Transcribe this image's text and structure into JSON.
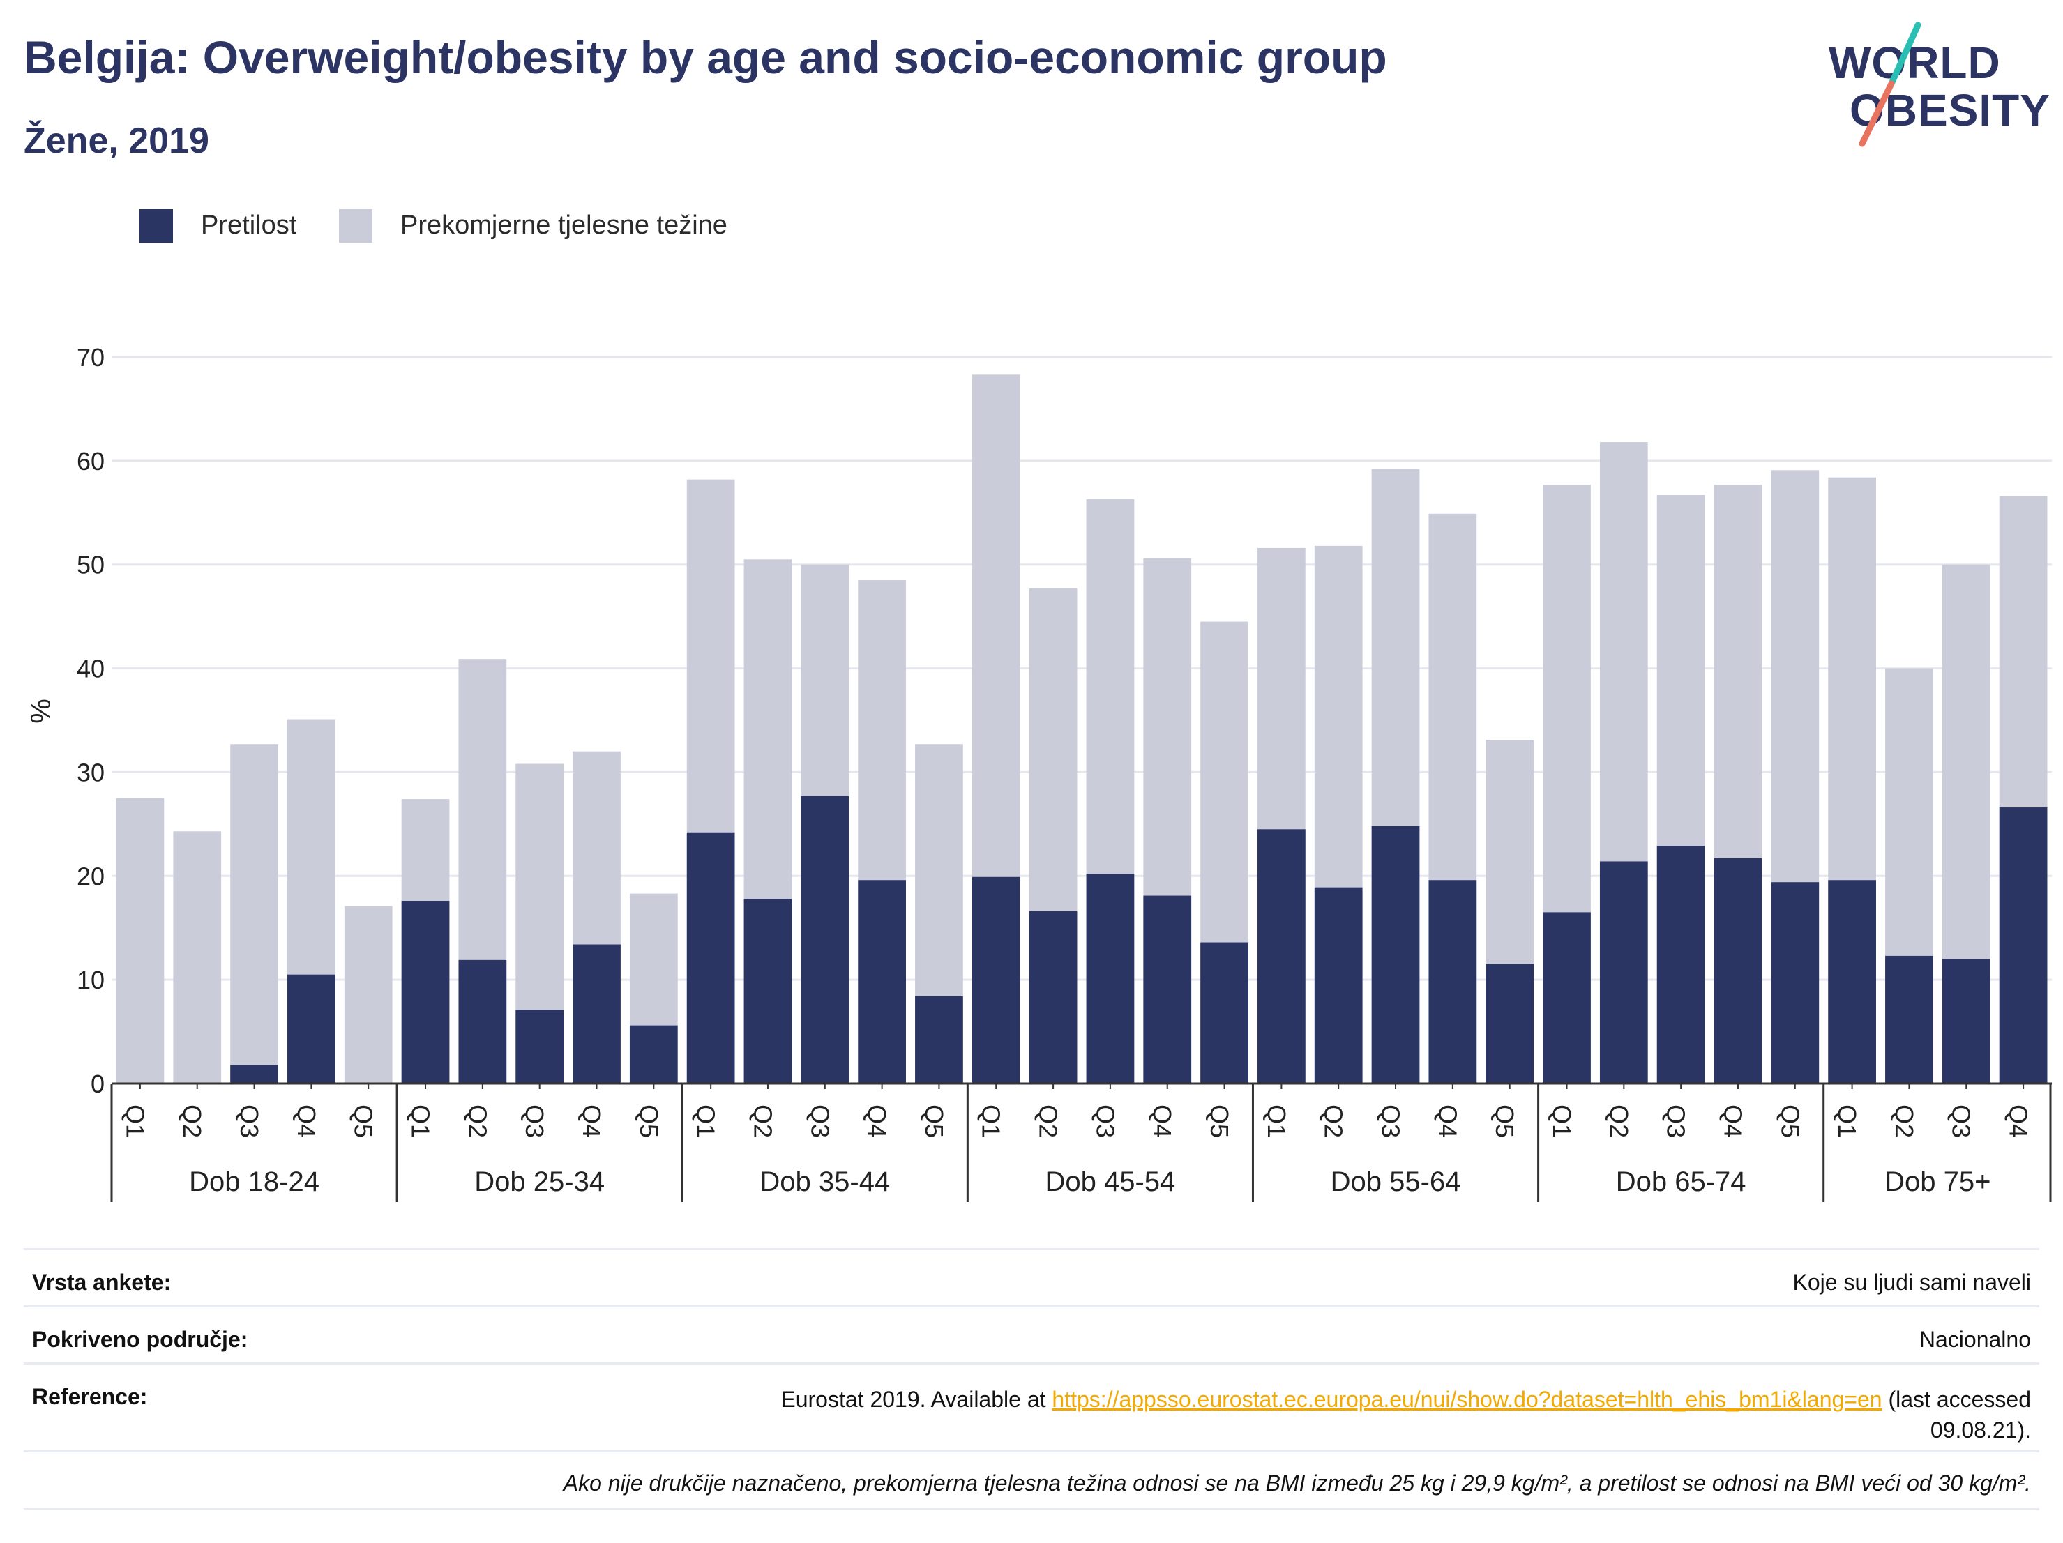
{
  "header": {
    "title": "Belgija: Overweight/obesity by age and socio-economic group",
    "subtitle": "Žene, 2019"
  },
  "logo": {
    "line1": "WORLD",
    "line2": "OBESITY"
  },
  "colors": {
    "obesity": "#2b3563",
    "overweight": "#cbccd9",
    "title": "#2b3463",
    "logo_teal": "#2bbfb3",
    "logo_coral": "#e8735f",
    "link": "#f2a900"
  },
  "legend": [
    {
      "label": "Pretilost",
      "color": "#2b3563"
    },
    {
      "label": "Prekomjerne tjelesne težine",
      "color": "#cbccd9"
    }
  ],
  "chart_data": {
    "type": "bar",
    "stacked": false,
    "ylabel": "%",
    "xlabel": "",
    "ylim": [
      0,
      70
    ],
    "yticks": [
      0,
      10,
      20,
      30,
      40,
      50,
      60,
      70
    ],
    "grid": true,
    "legend_position": "top-left",
    "groups": [
      {
        "label": "Dob 18-24",
        "categories": [
          "Q1",
          "Q2",
          "Q3",
          "Q4",
          "Q5"
        ],
        "overweight": [
          27.5,
          24.3,
          32.7,
          35.1,
          17.1
        ],
        "obesity": [
          0,
          0,
          1.8,
          10.5,
          0
        ]
      },
      {
        "label": "Dob 25-34",
        "categories": [
          "Q1",
          "Q2",
          "Q3",
          "Q4",
          "Q5"
        ],
        "overweight": [
          27.4,
          40.9,
          30.8,
          32.0,
          18.3
        ],
        "obesity": [
          17.6,
          11.9,
          7.1,
          13.4,
          5.6
        ]
      },
      {
        "label": "Dob 35-44",
        "categories": [
          "Q1",
          "Q2",
          "Q3",
          "Q4",
          "Q5"
        ],
        "overweight": [
          58.2,
          50.5,
          50.0,
          48.5,
          32.7
        ],
        "obesity": [
          24.2,
          17.8,
          27.7,
          19.6,
          8.4
        ]
      },
      {
        "label": "Dob 45-54",
        "categories": [
          "Q1",
          "Q2",
          "Q3",
          "Q4",
          "Q5"
        ],
        "overweight": [
          68.3,
          47.7,
          56.3,
          50.6,
          44.5
        ],
        "obesity": [
          19.9,
          16.6,
          20.2,
          18.1,
          13.6
        ]
      },
      {
        "label": "Dob 55-64",
        "categories": [
          "Q1",
          "Q2",
          "Q3",
          "Q4",
          "Q5"
        ],
        "overweight": [
          51.6,
          51.8,
          59.2,
          54.9,
          33.1
        ],
        "obesity": [
          24.5,
          18.9,
          24.8,
          19.6,
          11.5
        ]
      },
      {
        "label": "Dob 65-74",
        "categories": [
          "Q1",
          "Q2",
          "Q3",
          "Q4",
          "Q5"
        ],
        "overweight": [
          57.7,
          61.8,
          56.7,
          57.7,
          59.1
        ],
        "obesity": [
          16.5,
          21.4,
          22.9,
          21.7,
          19.4
        ]
      },
      {
        "label": "Dob 75+",
        "categories": [
          "Q1",
          "Q2",
          "Q3",
          "Q4"
        ],
        "overweight": [
          58.4,
          40.0,
          50.0,
          56.6
        ],
        "obesity": [
          19.6,
          12.3,
          12.0,
          26.6
        ]
      }
    ],
    "series": [
      {
        "name": "Prekomjerne tjelesne težine",
        "key": "overweight"
      },
      {
        "name": "Pretilost",
        "key": "obesity"
      }
    ]
  },
  "info": {
    "survey_type_label": "Vrsta ankete:",
    "survey_type_value": "Koje su ljudi sami naveli",
    "coverage_label": "Pokriveno područje:",
    "coverage_value": "Nacionalno",
    "reference_label": "Reference:",
    "reference_prefix": "Eurostat 2019. Available at ",
    "reference_link": "https://appsso.eurostat.ec.europa.eu/nui/show.do?dataset=hlth_ehis_bm1i&lang=en",
    "reference_suffix": " (last accessed",
    "reference_date": "09.08.21).",
    "note": "Ako nije drukčije naznačeno, prekomjerna tjelesna težina odnosi se na BMI između 25 kg i 29,9 kg/m², a pretilost se odnosi na BMI veći od 30 kg/m²."
  }
}
